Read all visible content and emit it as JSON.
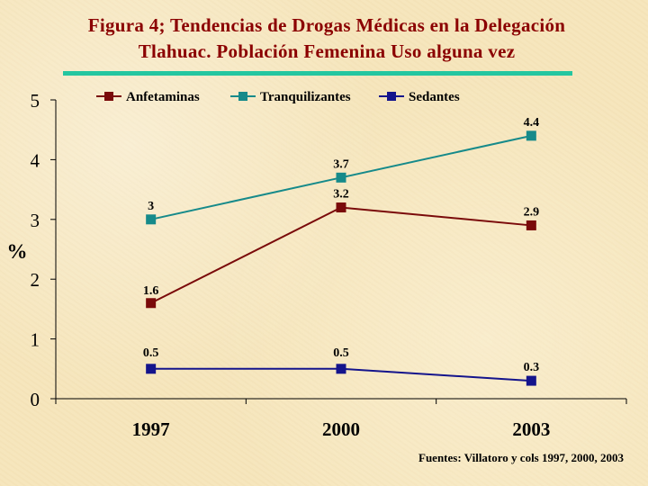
{
  "title_line1": "Figura 4; Tendencias de Drogas Médicas en  la Delegación",
  "title_line2": "Tlahuac. Población Femenina Uso alguna vez",
  "source": "Fuentes: Villatoro y cols 1997, 2000, 2003",
  "colors": {
    "title": "#8b0000",
    "rule": "#24c6a0"
  },
  "chart_data": {
    "type": "line",
    "ylabel": "%",
    "xlabel": "",
    "categories": [
      "1997",
      "2000",
      "2003"
    ],
    "ylim": [
      0,
      5
    ],
    "yticks": [
      "0",
      "1",
      "2",
      "3",
      "4",
      "5"
    ],
    "legend_position": "top",
    "grid": false,
    "series": [
      {
        "name": "Anfetaminas",
        "values": [
          1.6,
          3.2,
          2.9
        ],
        "labels": [
          "1.6",
          "3.2",
          "2.9"
        ],
        "color": "#7a0a0a"
      },
      {
        "name": "Tranquilizantes",
        "values": [
          3,
          3.7,
          4.4
        ],
        "labels": [
          "3",
          "3.7",
          "4.4"
        ],
        "color": "#168a8a"
      },
      {
        "name": "Sedantes",
        "values": [
          0.5,
          0.5,
          0.3
        ],
        "labels": [
          "0.5",
          "0.5",
          "0.3"
        ],
        "color": "#14148c"
      }
    ]
  }
}
